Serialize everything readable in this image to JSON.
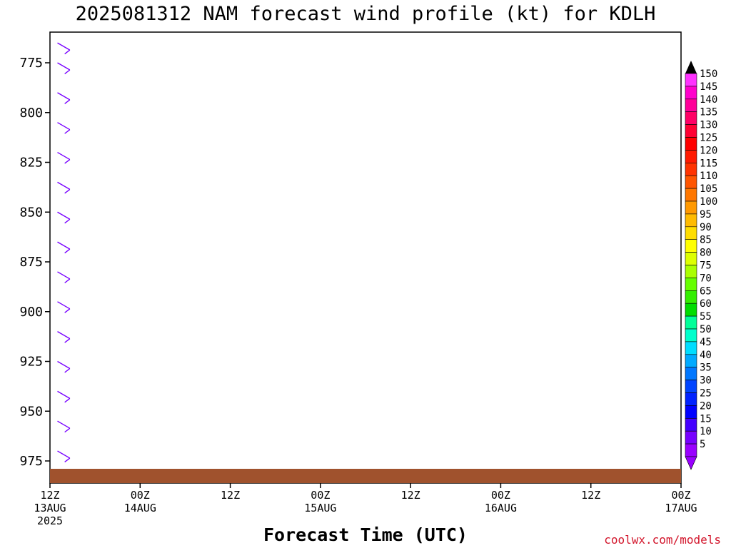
{
  "chart_data": {
    "type": "wind-barb time-height profile",
    "title": "2025081312 NAM forecast wind profile (kt) for KDLH",
    "xlabel": "Forecast Time (UTC)",
    "ylabel": "",
    "y_axis": {
      "ticks": [
        "775",
        "800",
        "825",
        "850",
        "875",
        "900",
        "925",
        "950",
        "975"
      ],
      "inverted": true
    },
    "x_axis": {
      "ticks": [
        {
          "hour": "12Z",
          "date": "13AUG",
          "year": "2025"
        },
        {
          "hour": "00Z",
          "date": "14AUG",
          "year": ""
        },
        {
          "hour": "12Z",
          "date": "",
          "year": ""
        },
        {
          "hour": "00Z",
          "date": "15AUG",
          "year": ""
        },
        {
          "hour": "12Z",
          "date": "",
          "year": ""
        },
        {
          "hour": "00Z",
          "date": "16AUG",
          "year": ""
        },
        {
          "hour": "12Z",
          "date": "",
          "year": ""
        },
        {
          "hour": "00Z",
          "date": "17AUG",
          "year": ""
        }
      ]
    },
    "colorbar": {
      "levels": [
        "150",
        "145",
        "140",
        "135",
        "130",
        "125",
        "120",
        "115",
        "110",
        "105",
        "100",
        "95",
        "90",
        "85",
        "80",
        "75",
        "70",
        "65",
        "60",
        "55",
        "50",
        "45",
        "40",
        "35",
        "30",
        "25",
        "20",
        "15",
        "10",
        "5"
      ],
      "colors": [
        "#ff33ff",
        "#ff00cc",
        "#ff0099",
        "#ff0066",
        "#ff0033",
        "#ff0000",
        "#ff1a00",
        "#ff3300",
        "#ff5500",
        "#ff7700",
        "#ff9900",
        "#ffbb00",
        "#ffdd00",
        "#ffff00",
        "#ddff00",
        "#aaff00",
        "#66ff00",
        "#33ee00",
        "#00dd00",
        "#00ff99",
        "#00ffcc",
        "#00ddff",
        "#00aaff",
        "#0077ff",
        "#0044ff",
        "#0022ff",
        "#0000ff",
        "#4400ff",
        "#7700ff",
        "#9900ff"
      ]
    },
    "series": [
      {
        "name": "",
        "time": "2025-08-13 13Z",
        "points": [
          {
            "p": 765,
            "dir": 300,
            "spd": 10
          },
          {
            "p": 775,
            "dir": 300,
            "spd": 10
          },
          {
            "p": 790,
            "dir": 300,
            "spd": 10
          },
          {
            "p": 805,
            "dir": 300,
            "spd": 10
          },
          {
            "p": 820,
            "dir": 300,
            "spd": 10
          },
          {
            "p": 835,
            "dir": 300,
            "spd": 10
          },
          {
            "p": 850,
            "dir": 300,
            "spd": 10
          },
          {
            "p": 865,
            "dir": 300,
            "spd": 10
          },
          {
            "p": 880,
            "dir": 300,
            "spd": 10
          },
          {
            "p": 895,
            "dir": 300,
            "spd": 10
          },
          {
            "p": 910,
            "dir": 300,
            "spd": 10
          },
          {
            "p": 925,
            "dir": 300,
            "spd": 10
          },
          {
            "p": 940,
            "dir": 300,
            "spd": 10
          },
          {
            "p": 955,
            "dir": 300,
            "spd": 10
          },
          {
            "p": 970,
            "dir": 300,
            "spd": 10
          }
        ]
      }
    ],
    "legend": "colorbar-right",
    "grid": false
  },
  "credit": "coolwx.com/models"
}
